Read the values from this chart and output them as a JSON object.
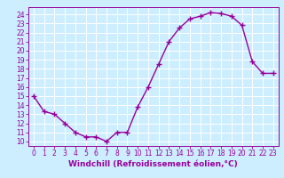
{
  "x": [
    0,
    1,
    2,
    3,
    4,
    5,
    6,
    7,
    8,
    9,
    10,
    11,
    12,
    13,
    14,
    15,
    16,
    17,
    18,
    19,
    20,
    21,
    22,
    23
  ],
  "y": [
    15,
    13.3,
    13,
    12,
    11,
    10.5,
    10.5,
    10,
    11,
    11,
    13.8,
    16,
    18.5,
    21,
    22.5,
    23.5,
    23.8,
    24.2,
    24.1,
    23.8,
    22.8,
    18.8,
    17.5,
    17.5
  ],
  "line_color": "#990099",
  "marker": "+",
  "markersize": 4,
  "linewidth": 1.0,
  "background_color": "#cceeff",
  "grid_color": "#ffffff",
  "xlabel": "Windchill (Refroidissement éolien,°C)",
  "xlabel_fontsize": 6.5,
  "ylabel_ticks": [
    10,
    11,
    12,
    13,
    14,
    15,
    16,
    17,
    18,
    19,
    20,
    21,
    22,
    23,
    24
  ],
  "xlim": [
    -0.5,
    23.5
  ],
  "ylim": [
    9.5,
    24.8
  ],
  "tick_fontsize": 5.5,
  "title": ""
}
